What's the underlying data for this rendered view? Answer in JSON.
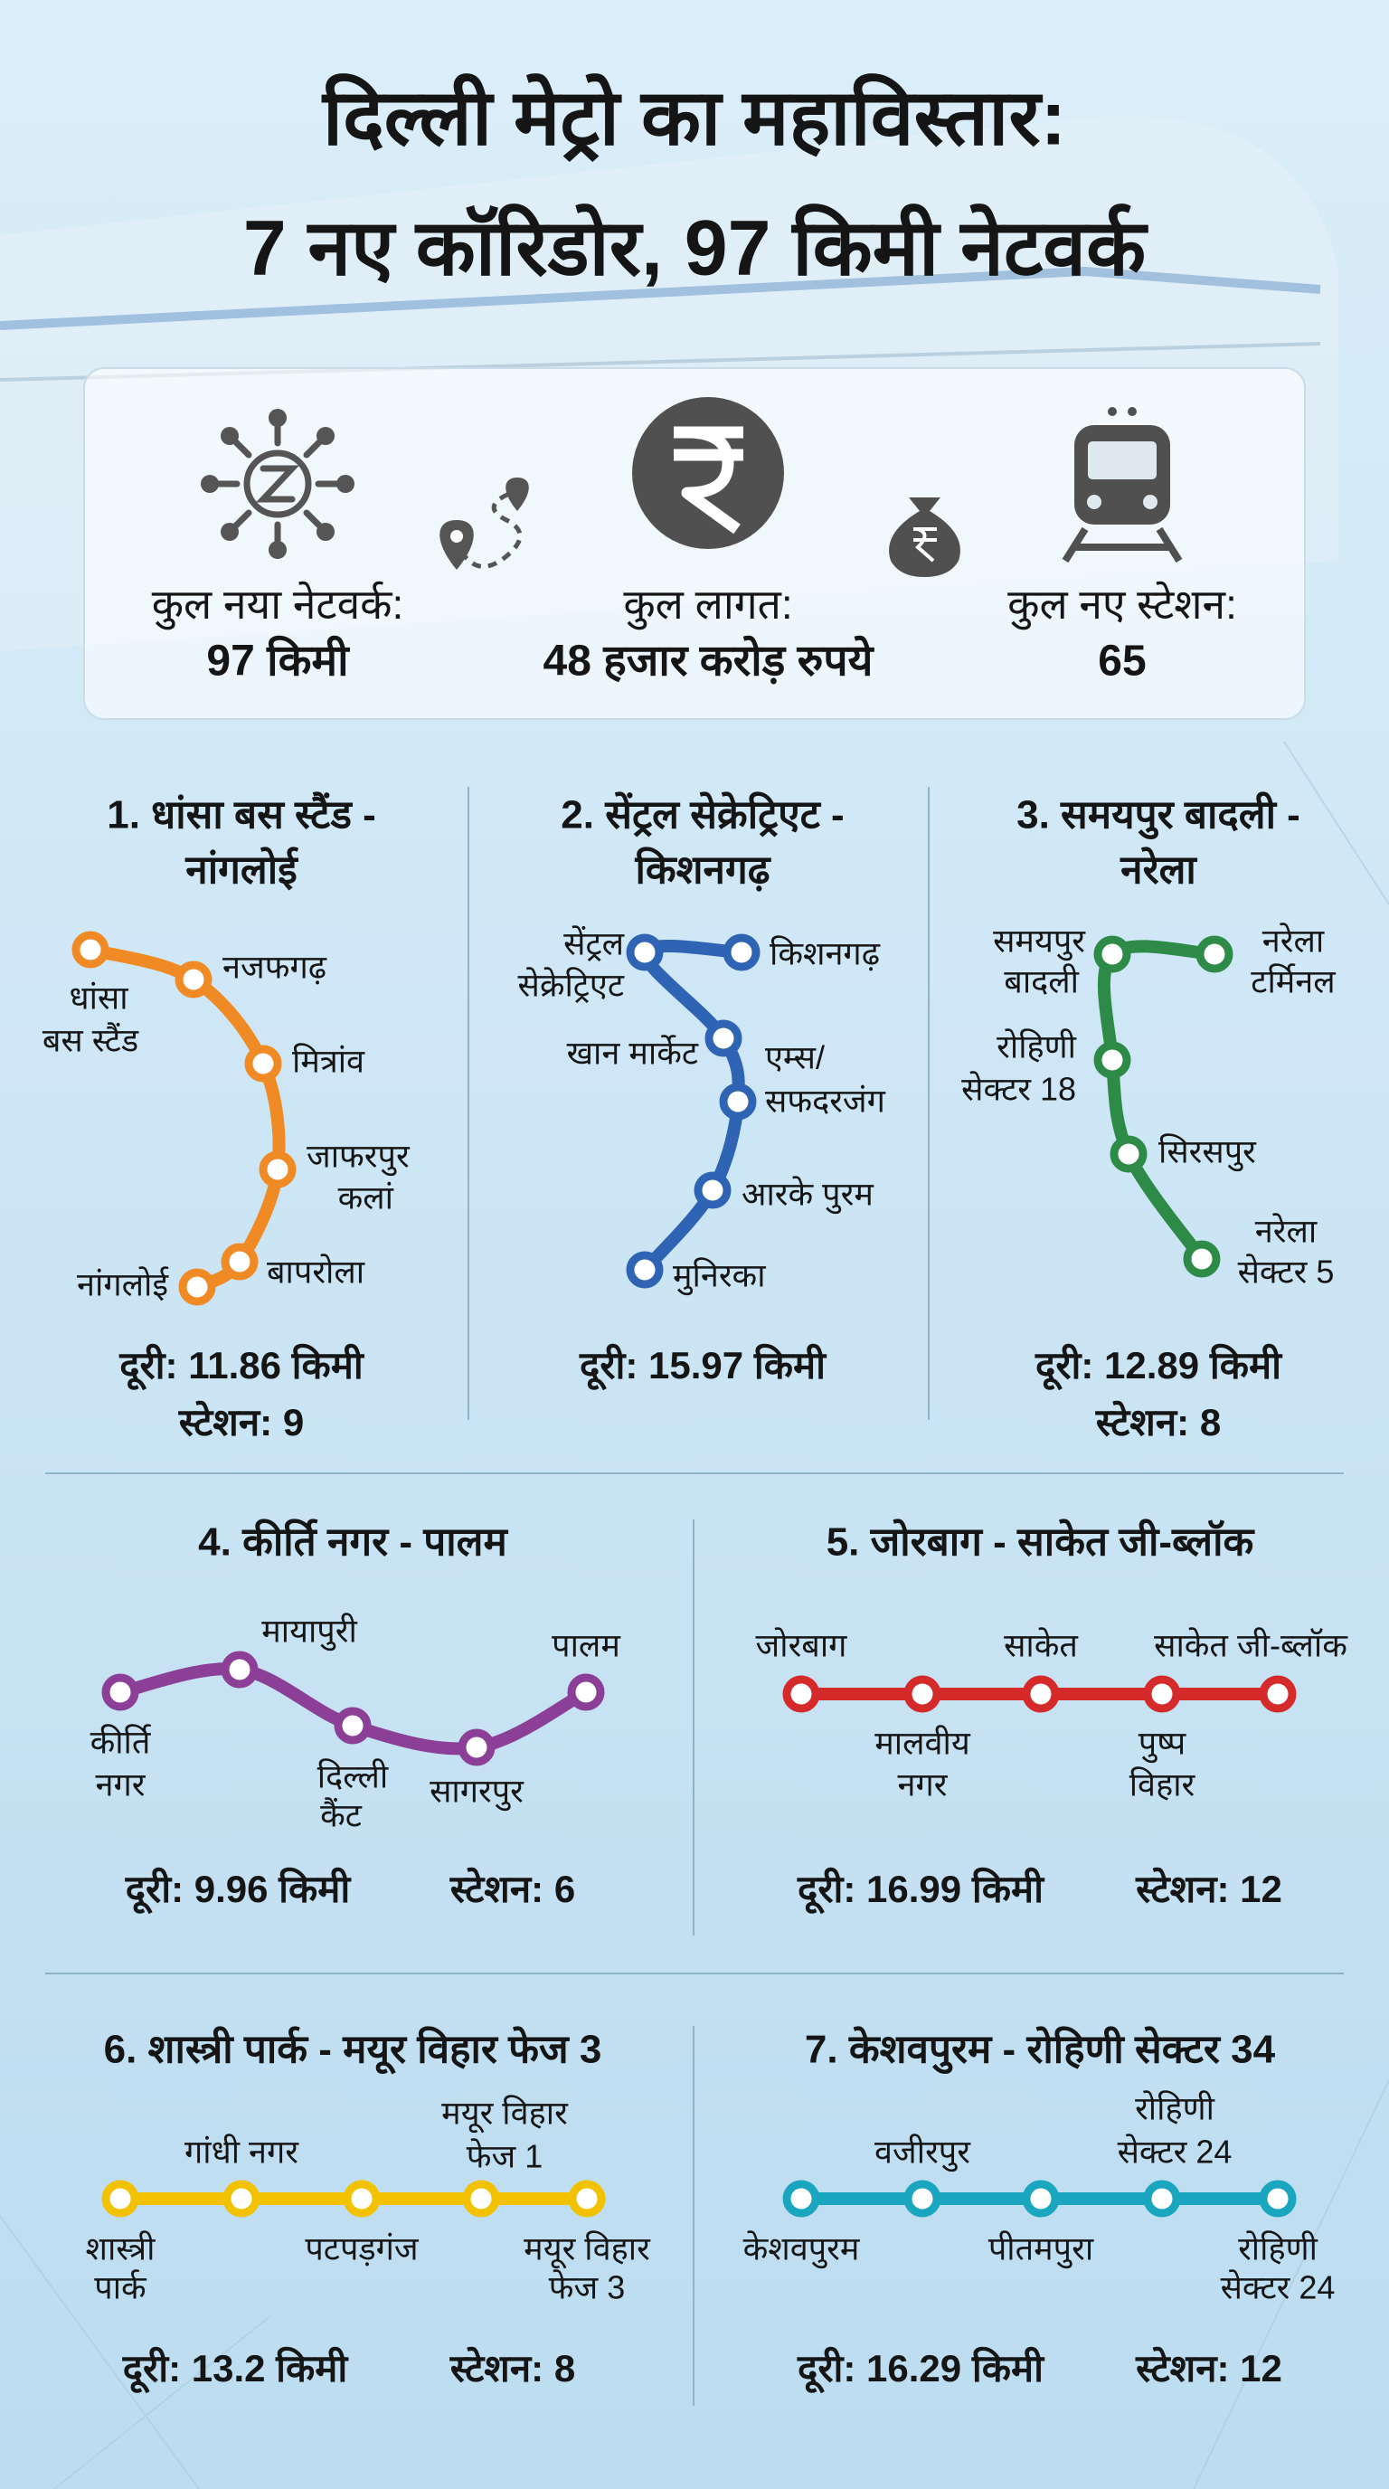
{
  "header": {
    "title": [
      "दिल्ली मेट्रो का महाविस्तार:",
      "7 नए कॉरिडोर, 97 किमी नेटवर्क"
    ]
  },
  "summary": [
    {
      "label": "कुल नया नेटवर्क:",
      "value": "97 किमी"
    },
    {
      "label": "कुल लागत:",
      "value": "48 हजार करोड़ रुपये"
    },
    {
      "label": "कुल नए स्टेशन:",
      "value": "65"
    }
  ],
  "corridors": [
    {
      "title": [
        "1. धांसा बस स्टैंड -",
        "नांगलोई"
      ],
      "color": "#f08a24",
      "stations": [
        [
          "धांसा",
          "बस स्टैंड"
        ],
        [
          "नजफगढ़"
        ],
        [
          "मित्रांव"
        ],
        [
          "जाफरपुर",
          "कलां"
        ],
        [
          "बापरोला"
        ],
        [
          "नांगलोई"
        ]
      ],
      "distance": "दूरी: 11.86 किमी",
      "station_count": "स्टेशन: 9"
    },
    {
      "title": [
        "2. सेंट्रल सेक्रेट्रिएट -",
        "किशनगढ़"
      ],
      "color": "#2f64b4",
      "stations": [
        [
          "सेंट्रल",
          "सेक्रेट्रिएट"
        ],
        [
          "किशनगढ़"
        ],
        [
          "खान मार्केट"
        ],
        [
          "एम्स/",
          "सफदरजंग"
        ],
        [
          "आरके पुरम"
        ],
        [
          "मुनिरका"
        ]
      ],
      "distance": "दूरी: 15.97 किमी"
    },
    {
      "title": [
        "3. समयपुर बादली -",
        "नरेला"
      ],
      "color": "#2e8b47",
      "stations": [
        [
          "समयपुर",
          "बादली"
        ],
        [
          "नरेला",
          "टर्मिनल"
        ],
        [
          "रोहिणी",
          "सेक्टर 18"
        ],
        [
          "सिरसपुर"
        ],
        [
          "नरेला",
          "सेक्टर 5"
        ]
      ],
      "distance": "दूरी: 12.89 किमी",
      "station_count": "स्टेशन: 8"
    },
    {
      "title": [
        "4. कीर्ति नगर - पालम"
      ],
      "color": "#8b3f96",
      "stations": [
        [
          "कीर्ति",
          "नगर"
        ],
        [
          "मायापुरी"
        ],
        [
          "दिल्ली",
          "कैंट"
        ],
        [
          "सागरपुर"
        ],
        [
          "पालम"
        ]
      ],
      "distance": "दूरी: 9.96 किमी",
      "station_count": "स्टेशन: 6"
    },
    {
      "title": [
        "5. जोरबाग - साकेत जी-ब्लॉक"
      ],
      "color": "#d42a2a",
      "stations": [
        [
          "जोरबाग"
        ],
        [
          "मालवीय",
          "नगर"
        ],
        [
          "साकेत"
        ],
        [
          "पुष्प",
          "विहार"
        ],
        [
          "साकेत जी-ब्लॉक"
        ]
      ],
      "distance": "दूरी: 16.99 किमी",
      "station_count": "स्टेशन: 12"
    },
    {
      "title": [
        "6. शास्त्री पार्क - मयूर विहार फेज 3"
      ],
      "color": "#f2c200",
      "stations": [
        [
          "शास्त्री",
          "पार्क"
        ],
        [
          "गांधी नगर"
        ],
        [
          "पटपड़गंज"
        ],
        [
          "मयूर विहार",
          "फेज 1"
        ],
        [
          "मयूर विहार",
          "फेज 3"
        ]
      ],
      "distance": "दूरी: 13.2 किमी",
      "station_count": "स्टेशन: 8"
    },
    {
      "title": [
        "7. केशवपुरम - रोहिणी सेक्टर 34"
      ],
      "color": "#1ba6c0",
      "stations": [
        [
          "केशवपुरम"
        ],
        [
          "वजीरपुर"
        ],
        [
          "पीतमपुरा"
        ],
        [
          "रोहिणी",
          "सेक्टर 24"
        ],
        [
          "रोहिणी",
          "सेक्टर 24"
        ]
      ],
      "distance": "दूरी: 16.29 किमी",
      "station_count": "स्टेशन: 12"
    }
  ]
}
